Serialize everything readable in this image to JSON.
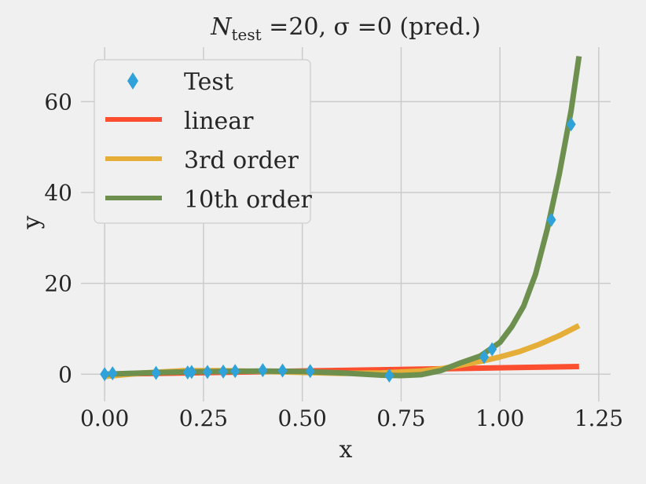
{
  "chart_data": {
    "type": "line",
    "title": {
      "main": "N",
      "sub": "test",
      "rest": " =20, σ =0 (pred.)"
    },
    "xlabel": "x",
    "ylabel": "y",
    "xlim": [
      -0.06,
      1.28
    ],
    "ylim": [
      -6,
      72
    ],
    "xticks": [
      0.0,
      0.25,
      0.5,
      0.75,
      1.0,
      1.25
    ],
    "xtick_labels": [
      "0.00",
      "0.25",
      "0.50",
      "0.75",
      "1.00",
      "1.25"
    ],
    "yticks": [
      0,
      20,
      40,
      60
    ],
    "ytick_labels": [
      "0",
      "20",
      "40",
      "60"
    ],
    "grid": true,
    "legend_position": "top-left",
    "test_points": {
      "name": "Test",
      "color": "#30a2da",
      "x": [
        0.0,
        0.02,
        0.13,
        0.21,
        0.22,
        0.26,
        0.3,
        0.33,
        0.4,
        0.45,
        0.52,
        0.72,
        0.96,
        0.98,
        1.13,
        1.18
      ],
      "y": [
        0.0,
        0.2,
        0.3,
        0.4,
        0.5,
        0.5,
        0.6,
        0.7,
        0.9,
        0.8,
        0.7,
        -0.3,
        3.8,
        5.5,
        34.0,
        55.0
      ]
    },
    "series": [
      {
        "name": "linear",
        "color": "#fc4f30",
        "x": [
          0.0,
          1.2
        ],
        "y": [
          0.0,
          1.7
        ]
      },
      {
        "name": "3rd order",
        "color": "#e5ae38",
        "x": [
          0.0,
          0.1,
          0.2,
          0.3,
          0.4,
          0.5,
          0.6,
          0.7,
          0.8,
          0.85,
          0.9,
          0.95,
          1.0,
          1.05,
          1.1,
          1.15,
          1.2
        ],
        "y": [
          -0.5,
          0.3,
          0.8,
          0.8,
          0.6,
          0.4,
          0.2,
          0.3,
          0.7,
          1.2,
          2.0,
          2.8,
          3.8,
          5.0,
          6.6,
          8.5,
          10.7
        ]
      },
      {
        "name": "10th order",
        "color": "#6d904f",
        "x": [
          0.0,
          0.1,
          0.2,
          0.3,
          0.4,
          0.5,
          0.6,
          0.7,
          0.75,
          0.8,
          0.85,
          0.9,
          0.95,
          1.0,
          1.03,
          1.06,
          1.09,
          1.12,
          1.15,
          1.18,
          1.2
        ],
        "y": [
          0.0,
          0.3,
          0.5,
          0.6,
          0.7,
          0.6,
          0.3,
          -0.2,
          -0.3,
          -0.1,
          0.8,
          2.5,
          4.0,
          7.0,
          10.5,
          15.0,
          22.0,
          32.0,
          44.0,
          58.0,
          70.0
        ]
      }
    ]
  }
}
